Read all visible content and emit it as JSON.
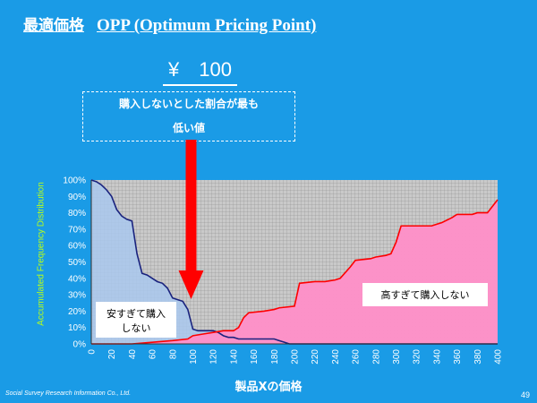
{
  "slide": {
    "title_ja": "最適価格",
    "title_en": "OPP (Optimum Pricing Point)",
    "price": "¥　100",
    "callout_line1": "購入しないとした割合が最も",
    "callout_line2": "低い値",
    "footer": "Social Survey Research Information Co., Ltd.",
    "page_number": "49",
    "colors": {
      "background": "#1a9be6",
      "arrow": "#ff0000"
    }
  },
  "chart_data": {
    "type": "line",
    "xlabel": "製品Xの価格",
    "ylabel": "Accumulated Frequency Distribution",
    "xlim": [
      0,
      400
    ],
    "ylim": [
      0,
      100
    ],
    "x_ticks": [
      0,
      20,
      40,
      60,
      80,
      100,
      120,
      140,
      160,
      180,
      200,
      220,
      240,
      260,
      280,
      300,
      320,
      340,
      360,
      380,
      400
    ],
    "y_ticks": [
      "0%",
      "10%",
      "20%",
      "30%",
      "40%",
      "50%",
      "60%",
      "70%",
      "80%",
      "90%",
      "100%"
    ],
    "grid": true,
    "series": [
      {
        "name": "安すぎて購入しない",
        "color": "#1a237e",
        "fill": "#a9c8ee",
        "x": [
          0,
          5,
          10,
          15,
          20,
          25,
          30,
          35,
          40,
          45,
          50,
          55,
          60,
          65,
          70,
          75,
          80,
          85,
          90,
          95,
          100,
          105,
          110,
          115,
          120,
          125,
          130,
          135,
          140,
          145,
          150,
          155,
          160,
          165,
          170,
          175,
          180,
          185,
          190,
          195,
          200,
          220,
          400
        ],
        "y": [
          100,
          99,
          97,
          94,
          90,
          82,
          78,
          76,
          75,
          55,
          43,
          42,
          40,
          38,
          37,
          34,
          28,
          27,
          26,
          21,
          9,
          8,
          8,
          8,
          8,
          7,
          5,
          4,
          4,
          3,
          3,
          3,
          3,
          3,
          3,
          3,
          3,
          2,
          1,
          0,
          0,
          0,
          0
        ]
      },
      {
        "name": "高すぎて購入しない",
        "color": "#ff0000",
        "fill": "#ff8fc8",
        "x": [
          0,
          40,
          60,
          80,
          95,
          100,
          110,
          120,
          130,
          140,
          145,
          150,
          155,
          170,
          180,
          185,
          200,
          205,
          220,
          230,
          240,
          245,
          255,
          260,
          275,
          280,
          290,
          295,
          300,
          305,
          320,
          335,
          340,
          345,
          355,
          360,
          375,
          380,
          390,
          400
        ],
        "y": [
          0,
          0,
          1,
          2,
          3,
          5,
          6,
          7,
          8,
          8,
          10,
          16,
          19,
          20,
          21,
          22,
          23,
          37,
          38,
          38,
          39,
          40,
          47,
          51,
          52,
          53,
          54,
          55,
          62,
          72,
          72,
          72,
          73,
          74,
          77,
          79,
          79,
          80,
          80,
          88
        ]
      }
    ],
    "annotations": [
      {
        "text_lines": [
          "安すぎて購入",
          "しない"
        ]
      },
      {
        "text_lines": [
          "高すぎて購入しない"
        ]
      }
    ]
  }
}
